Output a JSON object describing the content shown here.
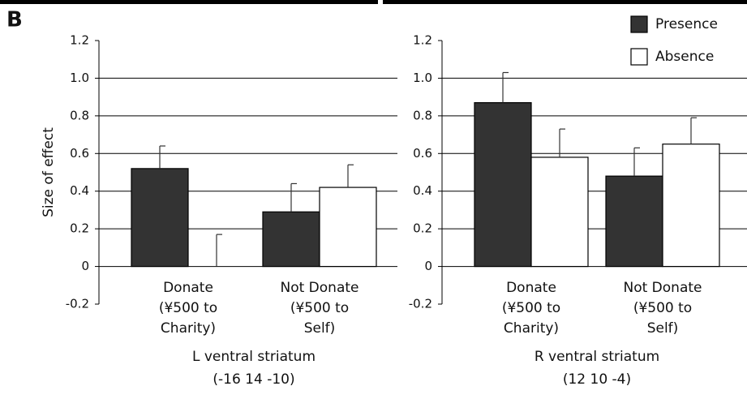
{
  "panel_label": "B",
  "chart_data": [
    {
      "type": "bar",
      "ylabel": "Size of effect",
      "xlabel": [
        "L ventral striatum",
        "(-16 14 -10)"
      ],
      "categories": [
        [
          "Donate",
          "(¥500 to",
          "Charity)"
        ],
        [
          "Not Donate",
          "(¥500 to",
          "Self)"
        ]
      ],
      "series": [
        {
          "color": "#333333",
          "values": [
            0.52,
            0.29
          ],
          "errors": [
            0.12,
            0.15
          ]
        },
        {
          "color": "#ffffff",
          "values": [
            0,
            0.42
          ],
          "errors": [
            0.17,
            0.12
          ]
        }
      ],
      "ylim": [
        -0.2,
        1.2
      ],
      "yticks": [
        -0.2,
        0,
        0.2,
        0.4,
        0.6,
        0.8,
        {
          "value": 1,
          "label": "1.0"
        },
        1.2
      ],
      "grid": true
    },
    {
      "type": "bar",
      "xlabel": [
        "R ventral striatum",
        "(12 10 -4)"
      ],
      "categories": [
        [
          "Donate",
          "(¥500 to",
          "Charity)"
        ],
        [
          "Not Donate",
          "(¥500 to",
          "Self)"
        ]
      ],
      "series": [
        {
          "name": "Presence",
          "color": "#333333",
          "values": [
            0.87,
            0.48
          ],
          "errors": [
            0.16,
            0.15
          ]
        },
        {
          "name": "Absence",
          "color": "#ffffff",
          "values": [
            0.58,
            0.65
          ],
          "errors": [
            0.15,
            0.14
          ]
        }
      ],
      "ylim": [
        -0.2,
        1.2
      ],
      "yticks": [
        -0.2,
        0,
        0.2,
        0.4,
        0.6,
        0.8,
        {
          "value": 1,
          "label": "1.0"
        },
        1.2
      ],
      "grid": true,
      "legend": "upper right"
    }
  ]
}
